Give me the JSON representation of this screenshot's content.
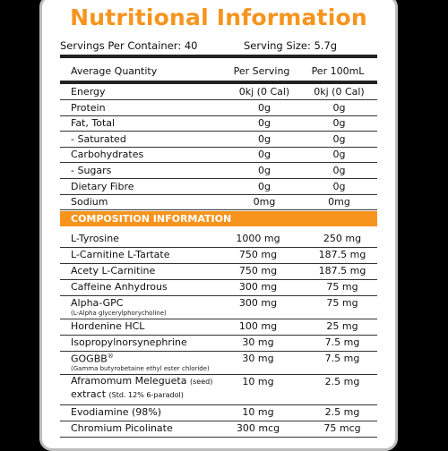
{
  "title": "Nutritional Information",
  "servings_per_container": "Servings Per Container: 40",
  "serving_size": "Serving Size: 5.7g",
  "headers": {
    "quantity": "Average Quantity",
    "per_serving": "Per Serving",
    "per_100ml": "Per 100mL"
  },
  "nutrition": [
    {
      "name": "Energy",
      "per_serving": "0kj (0 Cal)",
      "per_100": "0kj (0 Cal)"
    },
    {
      "name": "Protein",
      "per_serving": "0g",
      "per_100": "0g"
    },
    {
      "name": "Fat, Total",
      "per_serving": "0g",
      "per_100": "0g"
    },
    {
      "name": "- Saturated",
      "per_serving": "0g",
      "per_100": "0g"
    },
    {
      "name": "Carbohydrates",
      "per_serving": "0g",
      "per_100": "0g"
    },
    {
      "name": "- Sugars",
      "per_serving": "0g",
      "per_100": "0g"
    },
    {
      "name": "Dietary Fibre",
      "per_serving": "0g",
      "per_100": "0g"
    },
    {
      "name": "Sodium",
      "per_serving": "0mg",
      "per_100": "0mg"
    }
  ],
  "composition_title": "COMPOSITION INFORMATION",
  "composition": [
    {
      "name": "L-Tyrosine",
      "sub": "",
      "per_serving": "1000 mg",
      "per_100": "250 mg"
    },
    {
      "name": "L-Carnitine L-Tartate",
      "sub": "",
      "per_serving": "750 mg",
      "per_100": "187.5 mg"
    },
    {
      "name": "Acety L-Carnitine",
      "sub": "",
      "per_serving": "750 mg",
      "per_100": "187.5 mg"
    },
    {
      "name": "Caffeine Anhydrous",
      "sub": "",
      "per_serving": "300 mg",
      "per_100": "75 mg"
    },
    {
      "name": "Alpha-GPC",
      "sub": "(L-Alpha glycerylphorycholine)",
      "per_serving": "300 mg",
      "per_100": "75 mg"
    },
    {
      "name": "Hordenine HCL",
      "sub": "",
      "per_serving": "100 mg",
      "per_100": "25 mg"
    },
    {
      "name": "Isopropylnorsynephrine",
      "sub": "",
      "per_serving": "30 mg",
      "per_100": "7.5 mg"
    },
    {
      "name": "GOGBB",
      "mark": "®",
      "sub": "(Gamma butyrobetaine ethyl ester chloride)",
      "per_serving": "30 mg",
      "per_100": "7.5 mg"
    },
    {
      "name": "Aframomum Melegueta",
      "name_suffix": "(seed)",
      "name2": "extract",
      "sub2": "(Std. 12% 6-paradol)",
      "per_serving": "10 mg",
      "per_100": "2.5 mg"
    },
    {
      "name": "Evodiamine (98%)",
      "sub": "",
      "per_serving": "10 mg",
      "per_100": "2.5 mg"
    },
    {
      "name": "Chromium Picolinate",
      "sub": "",
      "per_serving": "300 mcg",
      "per_100": "75 mcg"
    }
  ],
  "colors": {
    "accent": "#f7941d",
    "background": "#000000",
    "border": "#bdbdbd"
  }
}
